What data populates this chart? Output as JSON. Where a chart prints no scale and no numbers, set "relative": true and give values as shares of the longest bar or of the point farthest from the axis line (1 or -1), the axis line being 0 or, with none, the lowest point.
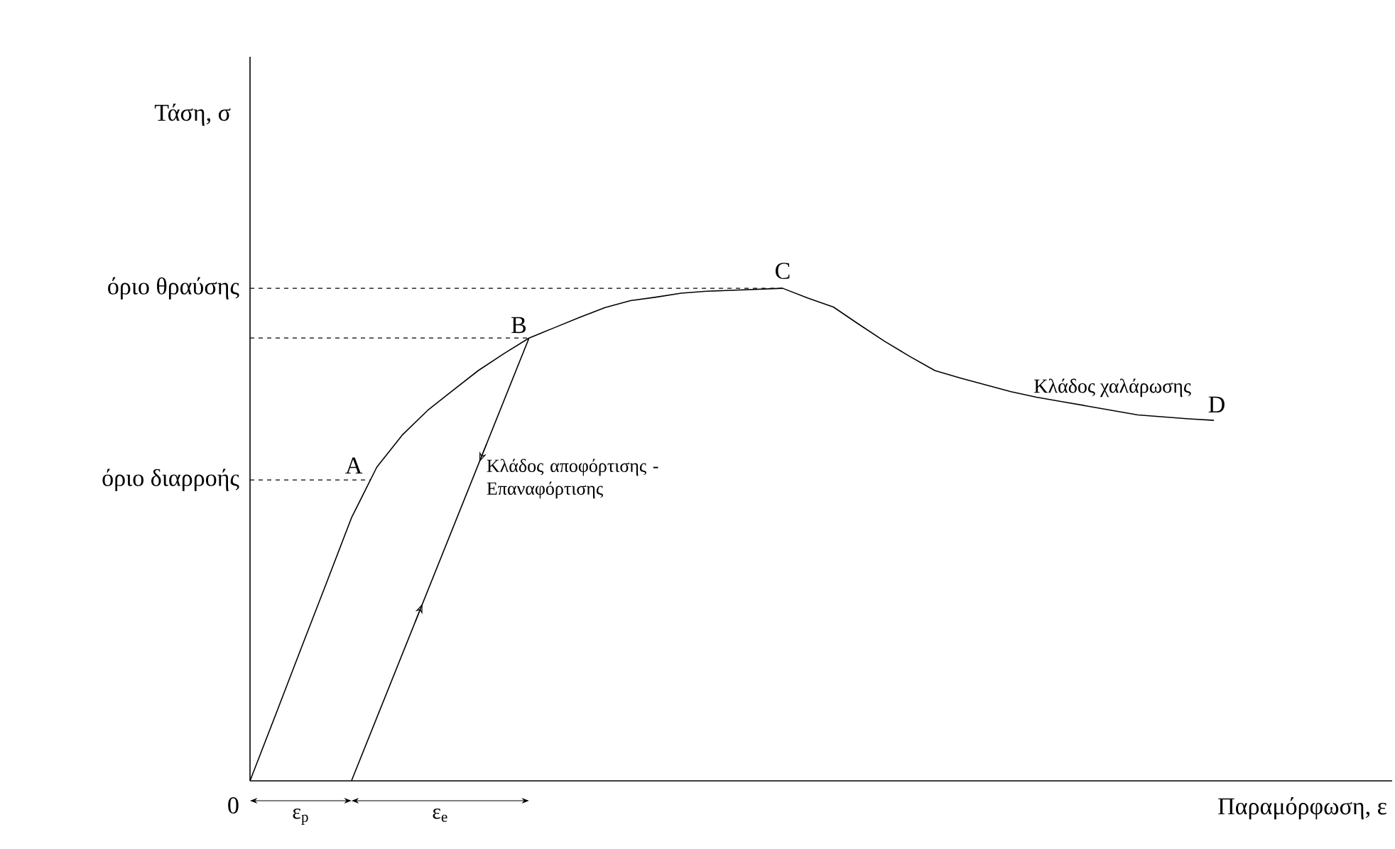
{
  "chart_data": {
    "type": "line",
    "relative": true,
    "xlabel": "Παραμόρφωση, ε",
    "marker": "none",
    "line_style": "solid",
    "categories": [
      null,
      null,
      null,
      null,
      null,
      null,
      null,
      null,
      null,
      null,
      null,
      null,
      null,
      null,
      null,
      null,
      null,
      null,
      null,
      null,
      null,
      null,
      null,
      null,
      null,
      null,
      null,
      null,
      null,
      null,
      null,
      null,
      null,
      null,
      null,
      null,
      null,
      null,
      null
    ],
    "series": [
      {
        "color": "#000000",
        "values": [
          0,
          0.133,
          0.267,
          0.4,
          0.534,
          0.637,
          0.702,
          0.752,
          0.793,
          0.833,
          0.867,
          0.899,
          0.92,
          0.941,
          0.961,
          0.975,
          0.982,
          0.99,
          0.994,
          0.996,
          0.998,
          1,
          0.98,
          0.962,
          0.927,
          0.893,
          0.862,
          0.833,
          0.818,
          0.804,
          0.79,
          0.779,
          0.77,
          0.761,
          0.752,
          0.743,
          0.739,
          0.735,
          0.732
        ]
      },
      {
        "color": "#000000",
        "values": [
          null,
          null,
          null,
          null,
          0,
          null,
          null,
          null,
          null,
          null,
          null,
          0.899,
          null,
          null,
          null,
          null,
          null,
          null,
          null,
          null,
          null,
          null,
          null,
          null,
          null,
          null,
          null,
          null,
          null,
          null,
          null,
          null,
          null,
          null,
          null,
          null,
          null,
          null,
          null
        ]
      }
    ],
    "ref_lines": [
      {
        "axis": "y",
        "value": 0.611,
        "label": "όριο διαρροής",
        "color": "#000000",
        "line_style": "dashed"
      },
      {
        "axis": "y",
        "value": 0.899,
        "label": null,
        "color": "#000000",
        "line_style": "dashed"
      },
      {
        "axis": "y",
        "value": 1,
        "label": "όριο θραύσης",
        "color": "#000000",
        "line_style": "dashed"
      }
    ],
    "annotations": [
      "A",
      "B",
      "C",
      "D",
      "Κλάδος χαλάρωσης",
      "Κλάδος αποφόρτισης -Επαναφόρτισης",
      "0",
      "ε$_{p}$",
      "ε$_{e}$",
      "Τάση, σ"
    ]
  }
}
